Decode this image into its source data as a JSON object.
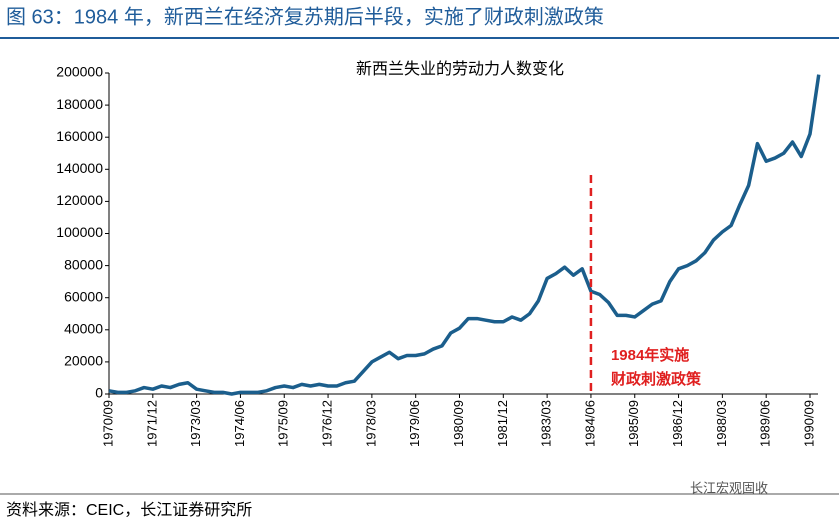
{
  "header": {
    "title": "图 63：1984 年，新西兰在经济复苏期后半段，实施了财政刺激政策"
  },
  "chart_data": {
    "type": "line",
    "title": "新西兰失业的劳动力人数变化",
    "categories": [
      "1970/09",
      null,
      null,
      null,
      null,
      "1971/12",
      null,
      null,
      null,
      null,
      "1973/03",
      null,
      null,
      null,
      null,
      "1974/06",
      null,
      null,
      null,
      null,
      "1975/09",
      null,
      null,
      null,
      null,
      "1976/12",
      null,
      null,
      null,
      null,
      "1978/03",
      null,
      null,
      null,
      null,
      "1979/06",
      null,
      null,
      null,
      null,
      "1980/09",
      null,
      null,
      null,
      null,
      "1981/12",
      null,
      null,
      null,
      null,
      "1983/03",
      null,
      null,
      null,
      null,
      "1984/06",
      null,
      null,
      null,
      null,
      "1985/09",
      null,
      null,
      null,
      null,
      "1986/12",
      null,
      null,
      null,
      null,
      "1988/03",
      null,
      null,
      null,
      null,
      "1989/06",
      null,
      null,
      null,
      null,
      "1990/09",
      null
    ],
    "series": [
      {
        "name": "新西兰失业的劳动力人数",
        "color": "#1b5e8c",
        "values": [
          2000,
          1000,
          1000,
          2000,
          4000,
          3000,
          5000,
          4000,
          6000,
          7000,
          3000,
          2000,
          1000,
          1000,
          0,
          1000,
          1000,
          1000,
          2000,
          4000,
          5000,
          4000,
          6000,
          5000,
          6000,
          5000,
          5000,
          7000,
          8000,
          14000,
          20000,
          23000,
          26000,
          22000,
          24000,
          24000,
          25000,
          28000,
          30000,
          38000,
          41000,
          47000,
          47000,
          46000,
          45000,
          45000,
          48000,
          46000,
          50000,
          58000,
          72000,
          75000,
          79000,
          74000,
          78000,
          64000,
          62000,
          57000,
          49000,
          49000,
          48000,
          52000,
          56000,
          58000,
          70000,
          78000,
          80000,
          83000,
          88000,
          96000,
          101000,
          105000,
          118000,
          130000,
          156000,
          145000,
          147000,
          150000,
          157000,
          148000,
          162000,
          199000
        ]
      }
    ],
    "ylim": [
      0,
      200000
    ],
    "yticks": [
      0,
      20000,
      40000,
      60000,
      80000,
      100000,
      120000,
      140000,
      160000,
      180000,
      200000
    ],
    "annotation": {
      "at": "1984/06",
      "color": "#e02020",
      "lines": [
        "1984年实施",
        "财政刺激政策"
      ]
    }
  },
  "footer": {
    "source": "资料来源：CEIC，长江证券研究所",
    "watermark": "长江宏观固收"
  }
}
